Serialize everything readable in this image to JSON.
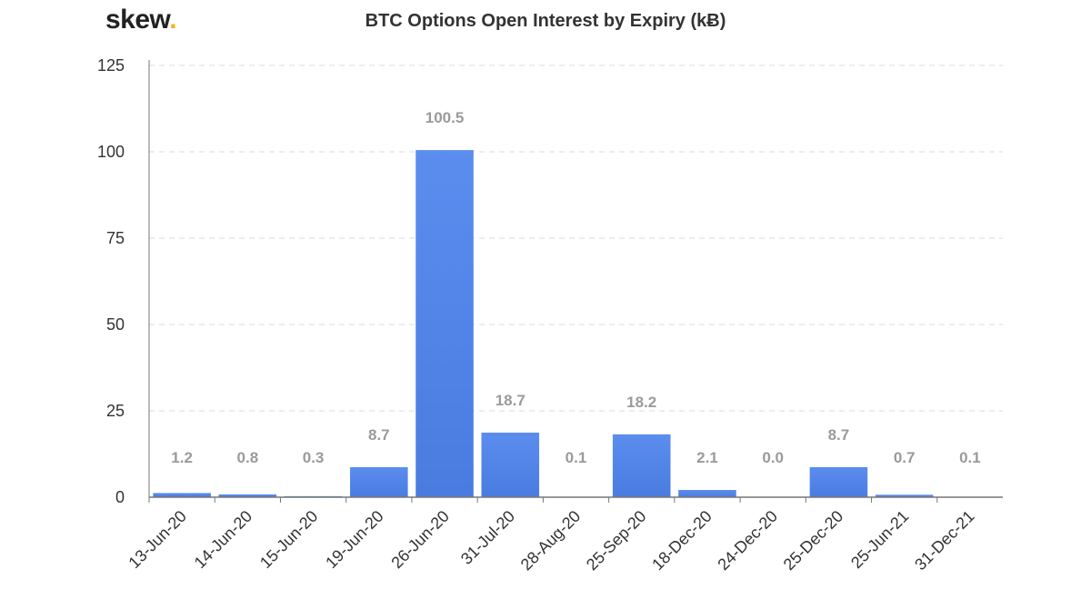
{
  "brand": {
    "name": "skew",
    "dot": "."
  },
  "colors": {
    "bar": "#5b8def",
    "bar_dark": "#4a7ce0",
    "axis": "#777777",
    "grid": "#dddddd",
    "data_label": "#9a9a9a",
    "brand_dot": "#f2b21b"
  },
  "chart_data": {
    "type": "bar",
    "title": "BTC Options Open Interest by Expiry (kɃ)",
    "xlabel": "",
    "ylabel": "",
    "categories": [
      "13-Jun-20",
      "14-Jun-20",
      "15-Jun-20",
      "19-Jun-20",
      "26-Jun-20",
      "31-Jul-20",
      "28-Aug-20",
      "25-Sep-20",
      "18-Dec-20",
      "24-Dec-20",
      "25-Dec-20",
      "25-Jun-21",
      "31-Dec-21"
    ],
    "values": [
      1.2,
      0.8,
      0.3,
      8.7,
      100.5,
      18.7,
      0.1,
      18.2,
      2.1,
      0.0,
      8.7,
      0.7,
      0.1
    ],
    "value_labels": [
      "1.2",
      "0.8",
      "0.3",
      "8.7",
      "100.5",
      "18.7",
      "0.1",
      "18.2",
      "2.1",
      "0.0",
      "8.7",
      "0.7",
      "0.1"
    ],
    "ylim": [
      0,
      125
    ],
    "yticks": [
      "0",
      "25",
      "50",
      "75",
      "100",
      "125"
    ],
    "grid": true,
    "legend": "none"
  }
}
